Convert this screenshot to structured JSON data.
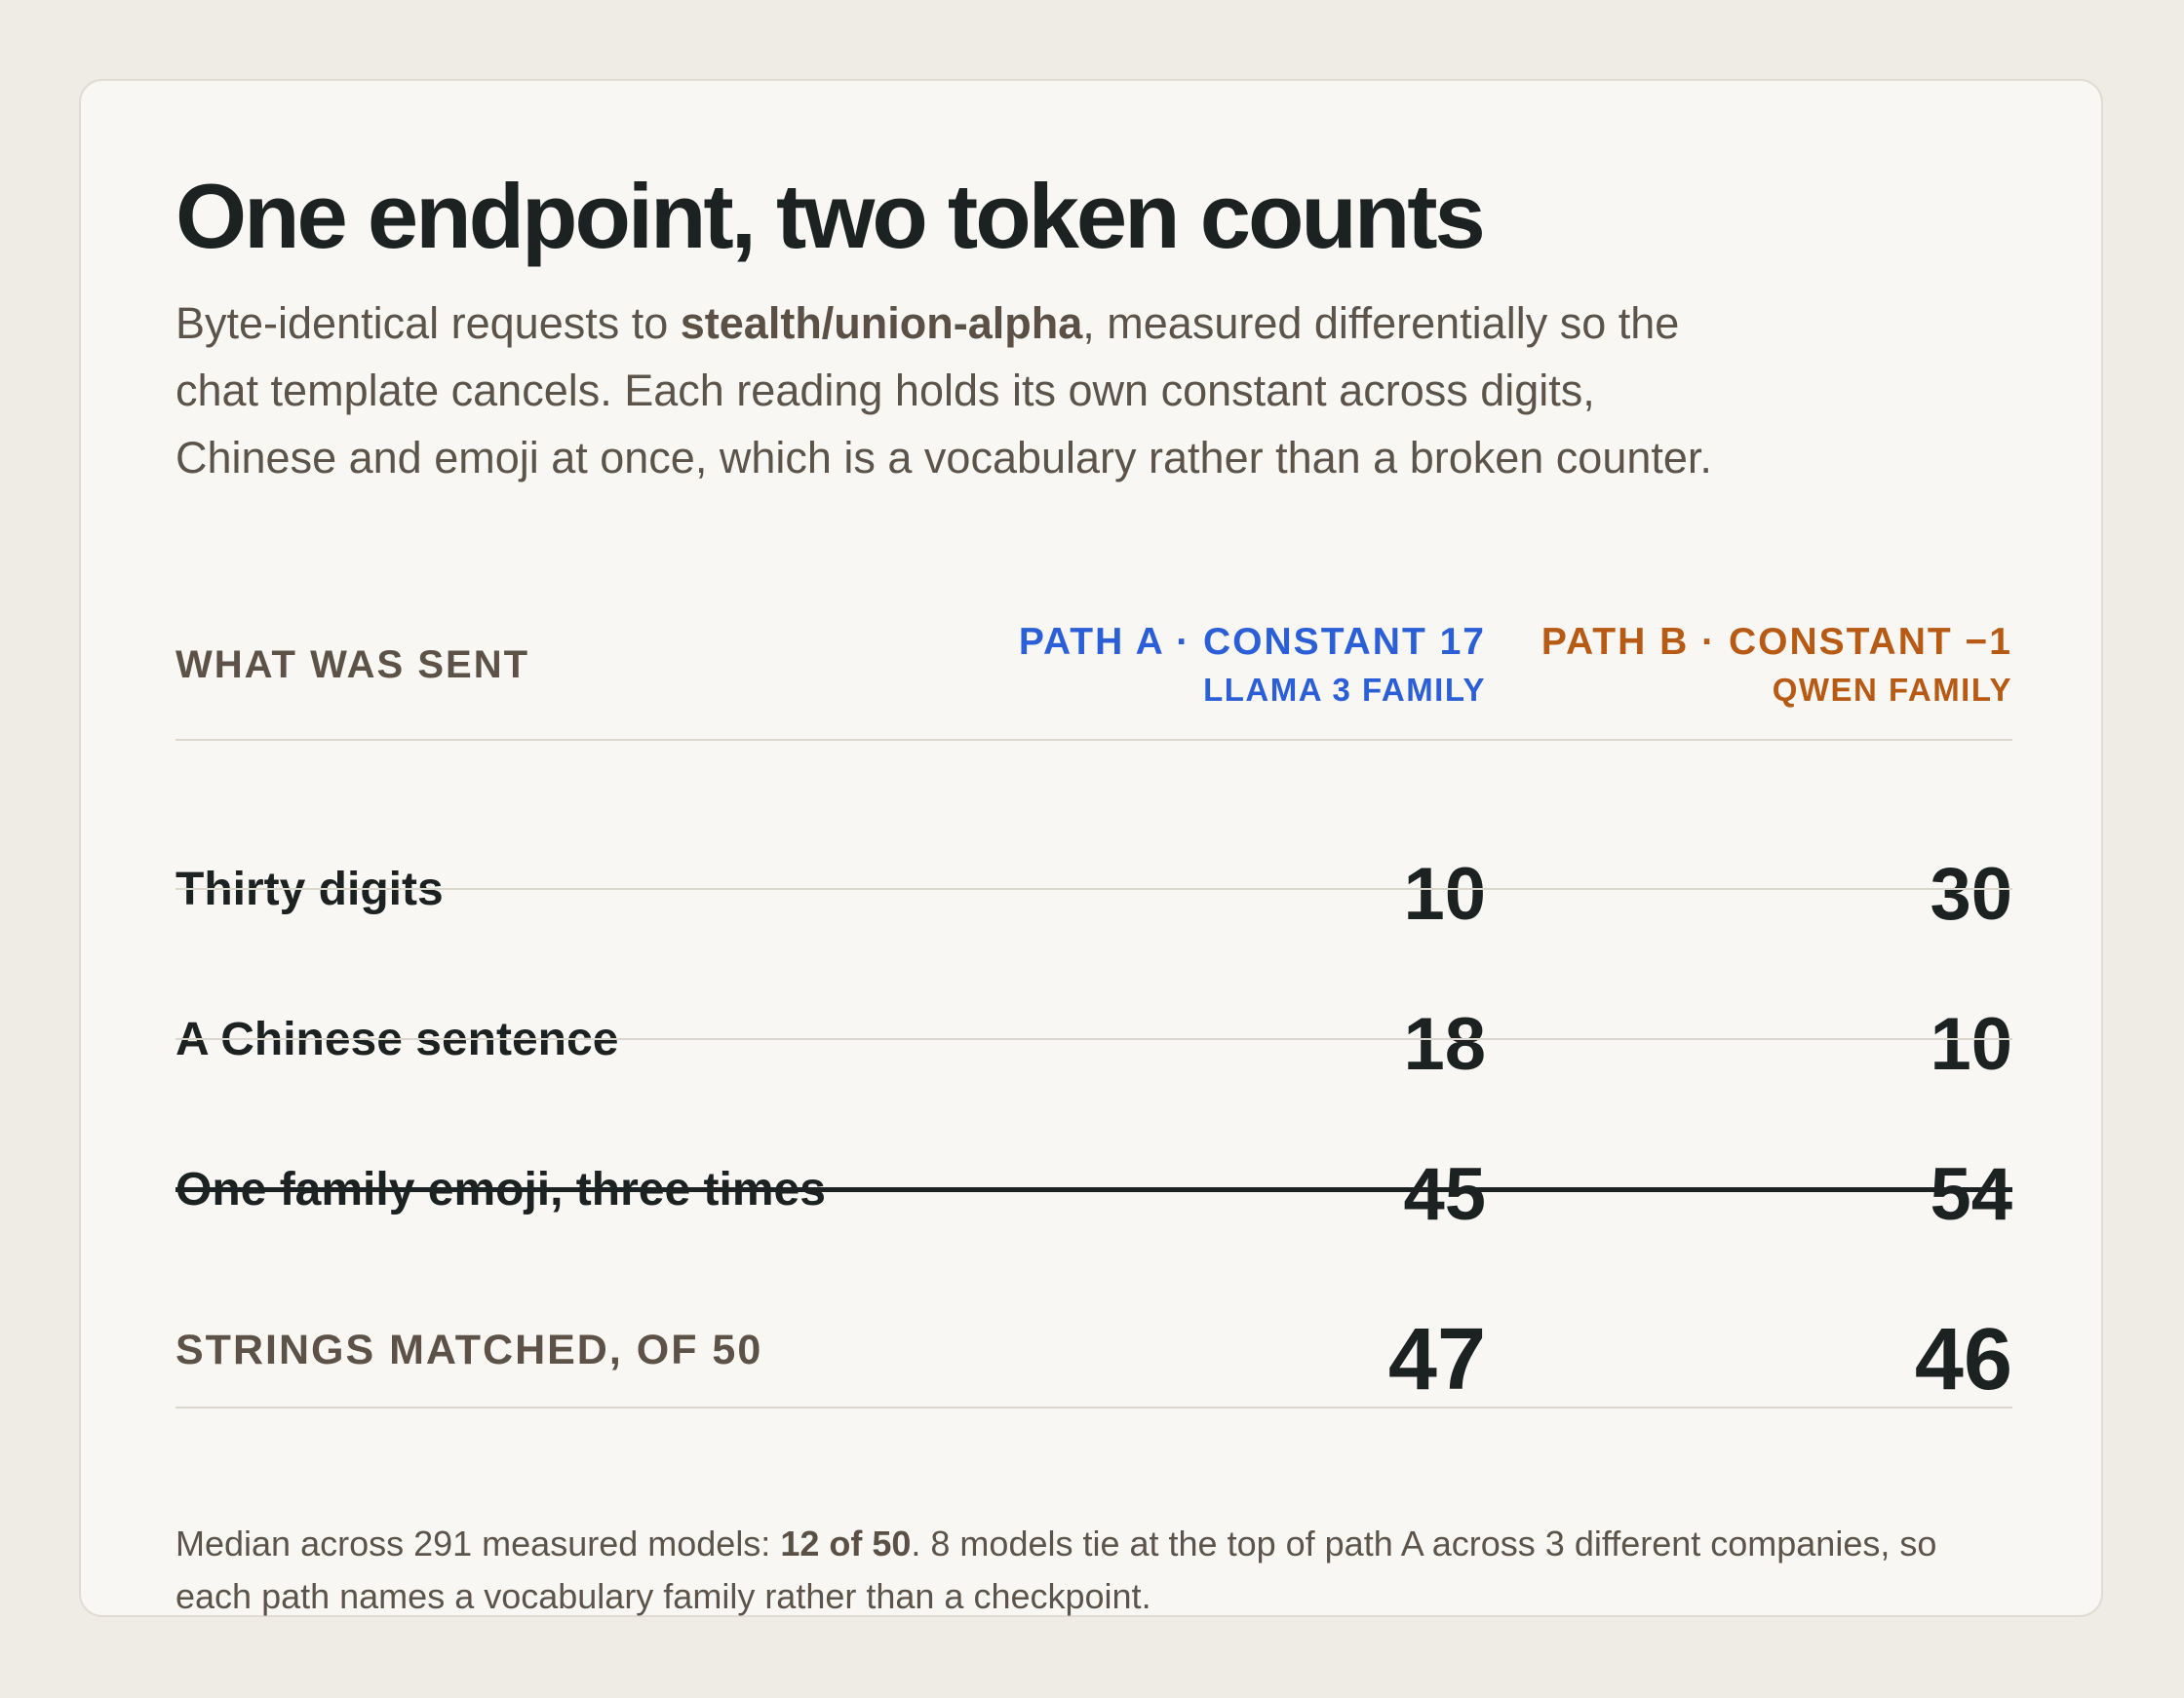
{
  "title": "One endpoint, two token counts",
  "subtitle": {
    "pre": "Byte-identical requests to ",
    "bold": "stealth/union-alpha",
    "post": ", measured differentially so the chat template cancels. Each reading holds its own constant across digits, Chinese and emoji at once, which is a vocabulary rather than a broken counter."
  },
  "table": {
    "column_label": "WHAT WAS SENT",
    "path_a": {
      "title": "PATH A · CONSTANT 17",
      "family": "LLAMA 3 FAMILY",
      "color": "#2b5fd8"
    },
    "path_b": {
      "title": "PATH B · CONSTANT −1",
      "family": "QWEN FAMILY",
      "color": "#b75a14"
    },
    "rows": [
      {
        "label": "Thirty digits",
        "a": "10",
        "b": "30"
      },
      {
        "label": "A Chinese sentence",
        "a": "18",
        "b": "10"
      },
      {
        "label": "One family emoji, three times",
        "a": "45",
        "b": "54"
      }
    ],
    "total": {
      "label": "STRINGS MATCHED, OF 50",
      "a": "47",
      "b": "46"
    }
  },
  "footnote": {
    "pre": "Median across 291 measured models: ",
    "bold": "12 of 50",
    "post": ". 8 models tie at the top of path A across 3 different companies, so each path names a vocabulary family rather than a checkpoint."
  }
}
